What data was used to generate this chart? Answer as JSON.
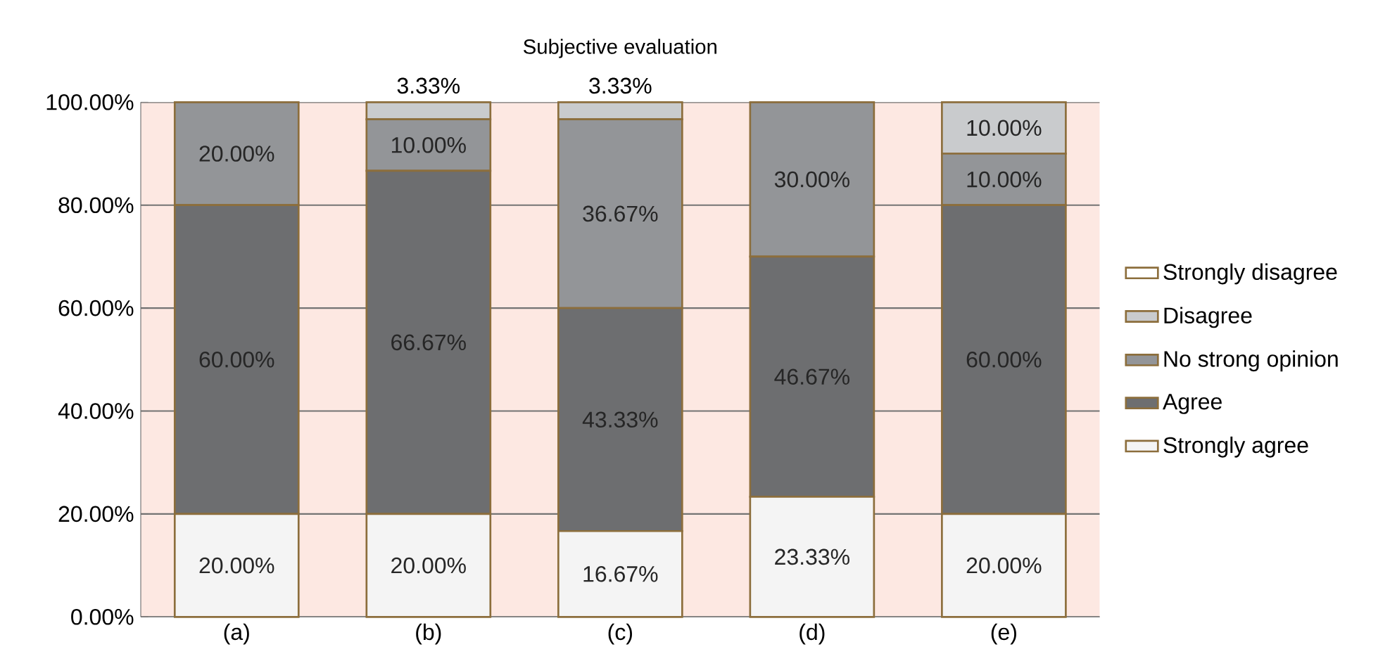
{
  "chart_data": {
    "type": "bar",
    "stacked": true,
    "title": "Subjective evaluation",
    "categories": [
      "(a)",
      "(b)",
      "(c)",
      "(d)",
      "(e)"
    ],
    "series": [
      {
        "name": "Strongly agree",
        "color": "#f4f4f4",
        "values": [
          20,
          20,
          16.67,
          23.33,
          20
        ],
        "value_labels": [
          "20.00%",
          "20.00%",
          "16.67%",
          "23.33%",
          "20.00%"
        ]
      },
      {
        "name": "Agree",
        "color": "#6d6e70",
        "values": [
          60,
          66.67,
          43.33,
          46.67,
          60
        ],
        "value_labels": [
          "60.00%",
          "66.67%",
          "43.33%",
          "46.67%",
          "60.00%"
        ]
      },
      {
        "name": "No strong opinion",
        "color": "#939598",
        "values": [
          20,
          10,
          36.67,
          30,
          10
        ],
        "value_labels": [
          "20.00%",
          "10.00%",
          "36.67%",
          "30.00%",
          "10.00%"
        ]
      },
      {
        "name": "Disagree",
        "color": "#c9cbcd",
        "values": [
          0,
          3.33,
          3.33,
          0,
          10
        ],
        "value_labels": [
          null,
          "3.33%",
          "3.33%",
          null,
          "10.00%"
        ]
      },
      {
        "name": "Strongly disagree",
        "color": "#ffffff",
        "values": [
          0,
          0,
          0,
          0,
          0
        ]
      }
    ],
    "ylim": [
      0,
      100
    ],
    "yticks": [
      {
        "value": 0,
        "label": "0.00%"
      },
      {
        "value": 20,
        "label": "20.00%"
      },
      {
        "value": 40,
        "label": "40.00%"
      },
      {
        "value": 60,
        "label": "60.00%"
      },
      {
        "value": 80,
        "label": "80.00%"
      },
      {
        "value": 100,
        "label": "100.00%"
      }
    ],
    "bands": [
      {
        "axis": "y",
        "from": 0,
        "to": 100,
        "color": "#fde8e2"
      }
    ],
    "grid": "y",
    "legend": "right"
  }
}
